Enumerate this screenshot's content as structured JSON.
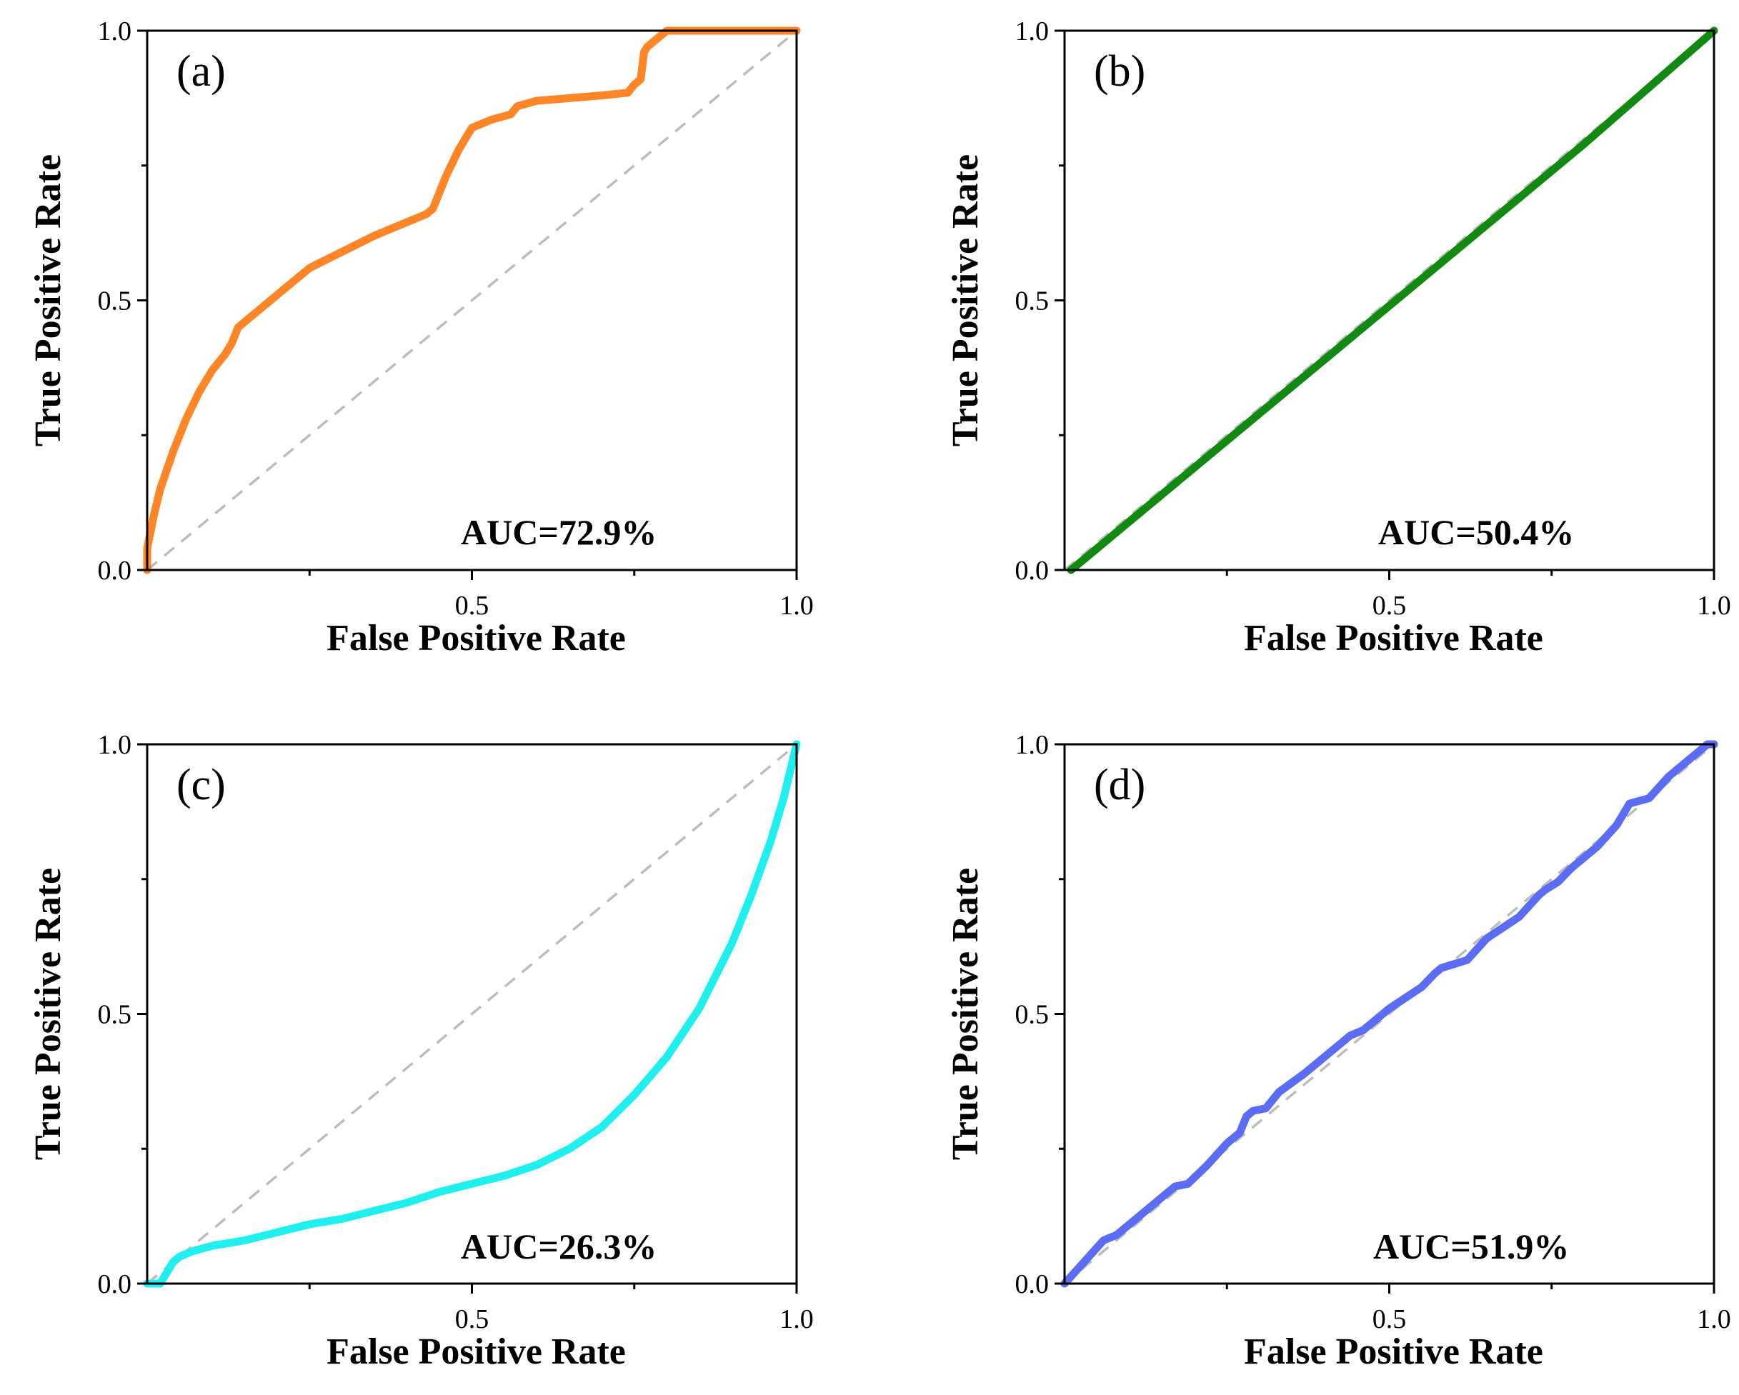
{
  "chart_data": [
    {
      "type": "line",
      "panel_label": "(a)",
      "annotation": "AUC=72.9%",
      "xlabel": "False Positive Rate",
      "ylabel": "True Positive Rate",
      "xlim": [
        0,
        1
      ],
      "ylim": [
        0,
        1
      ],
      "x_ticks": [
        "0.5",
        "1.0"
      ],
      "y_ticks": [
        "0.0",
        "0.5",
        "1.0"
      ],
      "diagonal_reference": true,
      "series": [
        {
          "color": "#FF8526",
          "points": [
            [
              0,
              0
            ],
            [
              0,
              0.04
            ],
            [
              0.01,
              0.1
            ],
            [
              0.02,
              0.15
            ],
            [
              0.04,
              0.22
            ],
            [
              0.06,
              0.28
            ],
            [
              0.08,
              0.33
            ],
            [
              0.1,
              0.37
            ],
            [
              0.12,
              0.4
            ],
            [
              0.13,
              0.42
            ],
            [
              0.14,
              0.45
            ],
            [
              0.16,
              0.47
            ],
            [
              0.2,
              0.51
            ],
            [
              0.25,
              0.56
            ],
            [
              0.3,
              0.59
            ],
            [
              0.35,
              0.62
            ],
            [
              0.4,
              0.645
            ],
            [
              0.43,
              0.66
            ],
            [
              0.44,
              0.67
            ],
            [
              0.46,
              0.73
            ],
            [
              0.48,
              0.78
            ],
            [
              0.5,
              0.82
            ],
            [
              0.53,
              0.835
            ],
            [
              0.56,
              0.845
            ],
            [
              0.57,
              0.86
            ],
            [
              0.6,
              0.87
            ],
            [
              0.65,
              0.875
            ],
            [
              0.7,
              0.88
            ],
            [
              0.74,
              0.885
            ],
            [
              0.75,
              0.9
            ],
            [
              0.76,
              0.91
            ],
            [
              0.765,
              0.96
            ],
            [
              0.77,
              0.97
            ],
            [
              0.78,
              0.98
            ],
            [
              0.79,
              0.99
            ],
            [
              0.8,
              1
            ],
            [
              1,
              1
            ]
          ]
        }
      ]
    },
    {
      "type": "line",
      "panel_label": "(b)",
      "annotation": "AUC=50.4%",
      "xlabel": "False Positive Rate",
      "ylabel": "True Positive Rate",
      "xlim": [
        0,
        1
      ],
      "ylim": [
        0,
        1
      ],
      "x_ticks": [
        "0.5",
        "1.0"
      ],
      "y_ticks": [
        "0.0",
        "0.5",
        "1.0"
      ],
      "diagonal_reference": true,
      "series": [
        {
          "color": "#128A12",
          "points": [
            [
              0.01,
              0
            ],
            [
              0.04,
              0.03
            ],
            [
              0.1,
              0.09
            ],
            [
              0.2,
              0.19
            ],
            [
              0.3,
              0.29
            ],
            [
              0.4,
              0.39
            ],
            [
              0.5,
              0.49
            ],
            [
              0.6,
              0.59
            ],
            [
              0.7,
              0.69
            ],
            [
              0.8,
              0.79
            ],
            [
              0.9,
              0.895
            ],
            [
              1,
              1
            ]
          ]
        }
      ]
    },
    {
      "type": "line",
      "panel_label": "(c)",
      "annotation": "AUC=26.3%",
      "xlabel": "False Positive Rate",
      "ylabel": "True Positive Rate",
      "xlim": [
        0,
        1
      ],
      "ylim": [
        0,
        1
      ],
      "x_ticks": [
        "0.5",
        "1.0"
      ],
      "y_ticks": [
        "0.0",
        "0.5",
        "1.0"
      ],
      "diagonal_reference": true,
      "series": [
        {
          "color": "#1FEFEF",
          "points": [
            [
              0,
              0
            ],
            [
              0.02,
              0
            ],
            [
              0.03,
              0.02
            ],
            [
              0.04,
              0.04
            ],
            [
              0.05,
              0.05
            ],
            [
              0.07,
              0.06
            ],
            [
              0.1,
              0.07
            ],
            [
              0.15,
              0.08
            ],
            [
              0.2,
              0.095
            ],
            [
              0.25,
              0.11
            ],
            [
              0.3,
              0.12
            ],
            [
              0.35,
              0.135
            ],
            [
              0.4,
              0.15
            ],
            [
              0.45,
              0.17
            ],
            [
              0.5,
              0.185
            ],
            [
              0.55,
              0.2
            ],
            [
              0.6,
              0.22
            ],
            [
              0.65,
              0.25
            ],
            [
              0.7,
              0.29
            ],
            [
              0.75,
              0.35
            ],
            [
              0.8,
              0.42
            ],
            [
              0.85,
              0.51
            ],
            [
              0.9,
              0.63
            ],
            [
              0.93,
              0.72
            ],
            [
              0.96,
              0.82
            ],
            [
              0.98,
              0.9
            ],
            [
              1,
              1
            ]
          ]
        }
      ]
    },
    {
      "type": "line",
      "panel_label": "(d)",
      "annotation": "AUC=51.9%",
      "xlabel": "False Positive Rate",
      "ylabel": "True Positive Rate",
      "xlim": [
        0,
        1
      ],
      "ylim": [
        0,
        1
      ],
      "x_ticks": [
        "0.5",
        "1.0"
      ],
      "y_ticks": [
        "0.0",
        "0.5",
        "1.0"
      ],
      "diagonal_reference": true,
      "series": [
        {
          "color": "#5B6CF5",
          "points": [
            [
              0,
              0
            ],
            [
              0.03,
              0.04
            ],
            [
              0.06,
              0.08
            ],
            [
              0.08,
              0.09
            ],
            [
              0.1,
              0.11
            ],
            [
              0.15,
              0.16
            ],
            [
              0.17,
              0.18
            ],
            [
              0.19,
              0.185
            ],
            [
              0.22,
              0.22
            ],
            [
              0.25,
              0.26
            ],
            [
              0.27,
              0.28
            ],
            [
              0.28,
              0.31
            ],
            [
              0.29,
              0.32
            ],
            [
              0.31,
              0.325
            ],
            [
              0.33,
              0.355
            ],
            [
              0.37,
              0.39
            ],
            [
              0.4,
              0.42
            ],
            [
              0.42,
              0.44
            ],
            [
              0.44,
              0.46
            ],
            [
              0.46,
              0.47
            ],
            [
              0.5,
              0.51
            ],
            [
              0.55,
              0.55
            ],
            [
              0.57,
              0.575
            ],
            [
              0.58,
              0.585
            ],
            [
              0.62,
              0.6
            ],
            [
              0.65,
              0.64
            ],
            [
              0.7,
              0.68
            ],
            [
              0.73,
              0.72
            ],
            [
              0.74,
              0.73
            ],
            [
              0.76,
              0.745
            ],
            [
              0.78,
              0.77
            ],
            [
              0.82,
              0.81
            ],
            [
              0.85,
              0.85
            ],
            [
              0.86,
              0.87
            ],
            [
              0.87,
              0.89
            ],
            [
              0.9,
              0.9
            ],
            [
              0.93,
              0.94
            ],
            [
              0.97,
              0.98
            ],
            [
              0.99,
              1
            ],
            [
              1,
              1
            ]
          ]
        }
      ]
    }
  ]
}
